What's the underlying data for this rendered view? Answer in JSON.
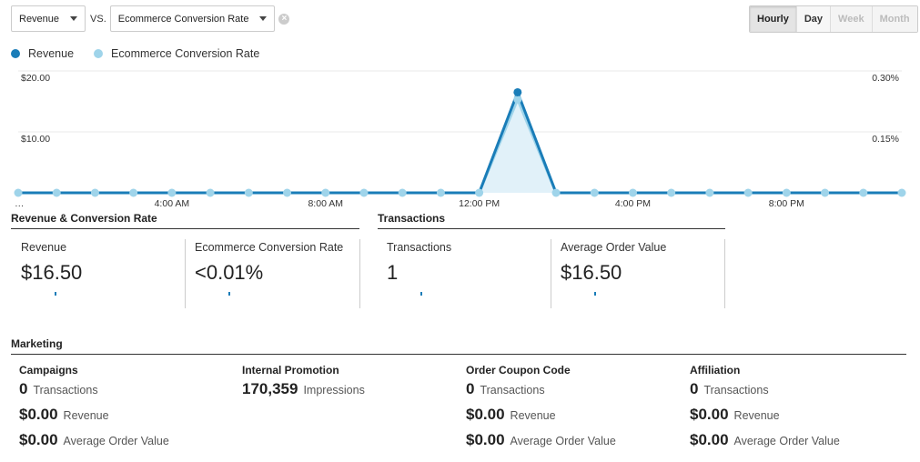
{
  "controls": {
    "metric1": "Revenue",
    "vs": "VS.",
    "metric2": "Ecommerce Conversion Rate",
    "clear": "×"
  },
  "granularity": {
    "hourly": "Hourly",
    "day": "Day",
    "week": "Week",
    "month": "Month"
  },
  "legend": {
    "series1": "Revenue",
    "series2": "Ecommerce Conversion Rate"
  },
  "colors": {
    "revenue": "#1a7db8",
    "conversion": "#9fd4ea",
    "conversion_fill": "#e1f1f9"
  },
  "chart_data": {
    "type": "line",
    "x": [
      "…",
      "",
      "",
      "",
      "4:00 AM",
      "",
      "",
      "",
      "8:00 AM",
      "",
      "",
      "",
      "12:00 PM",
      "",
      "",
      "",
      "4:00 PM",
      "",
      "",
      "",
      "8:00 PM",
      "",
      "",
      ""
    ],
    "series": [
      {
        "name": "Revenue",
        "axis": "left",
        "values": [
          0,
          0,
          0,
          0,
          0,
          0,
          0,
          0,
          0,
          0,
          0,
          0,
          0,
          16.5,
          0,
          0,
          0,
          0,
          0,
          0,
          0,
          0,
          0,
          0
        ]
      },
      {
        "name": "Ecommerce Conversion Rate",
        "axis": "right",
        "values": [
          0,
          0,
          0,
          0,
          0,
          0,
          0,
          0,
          0,
          0,
          0,
          0,
          0,
          0.23,
          0,
          0,
          0,
          0,
          0,
          0,
          0,
          0,
          0,
          0
        ]
      }
    ],
    "y_left_ticks": [
      "$10.00",
      "$20.00"
    ],
    "y_left_max": 20,
    "y_right_ticks": [
      "0.15%",
      "0.30%"
    ],
    "y_right_max": 0.3,
    "grid": true
  },
  "sections": {
    "revenue_conversion": "Revenue & Conversion Rate",
    "transactions": "Transactions",
    "marketing": "Marketing"
  },
  "metrics": [
    {
      "label": "Revenue",
      "value": "$16.50"
    },
    {
      "label": "Ecommerce Conversion Rate",
      "value": "<0.01%"
    },
    {
      "label": "Transactions",
      "value": "1"
    },
    {
      "label": "Average Order Value",
      "value": "$16.50"
    }
  ],
  "marketing": [
    {
      "head": "Campaigns",
      "rows": [
        {
          "num": "0",
          "unit": "Transactions"
        },
        {
          "num": "$0.00",
          "unit": "Revenue"
        },
        {
          "num": "$0.00",
          "unit": "Average Order Value"
        }
      ]
    },
    {
      "head": "Internal Promotion",
      "rows": [
        {
          "num": "170,359",
          "unit": "Impressions"
        }
      ]
    },
    {
      "head": "Order Coupon Code",
      "rows": [
        {
          "num": "0",
          "unit": "Transactions"
        },
        {
          "num": "$0.00",
          "unit": "Revenue"
        },
        {
          "num": "$0.00",
          "unit": "Average Order Value"
        }
      ]
    },
    {
      "head": "Affiliation",
      "rows": [
        {
          "num": "0",
          "unit": "Transactions"
        },
        {
          "num": "$0.00",
          "unit": "Revenue"
        },
        {
          "num": "$0.00",
          "unit": "Average Order Value"
        }
      ]
    }
  ]
}
